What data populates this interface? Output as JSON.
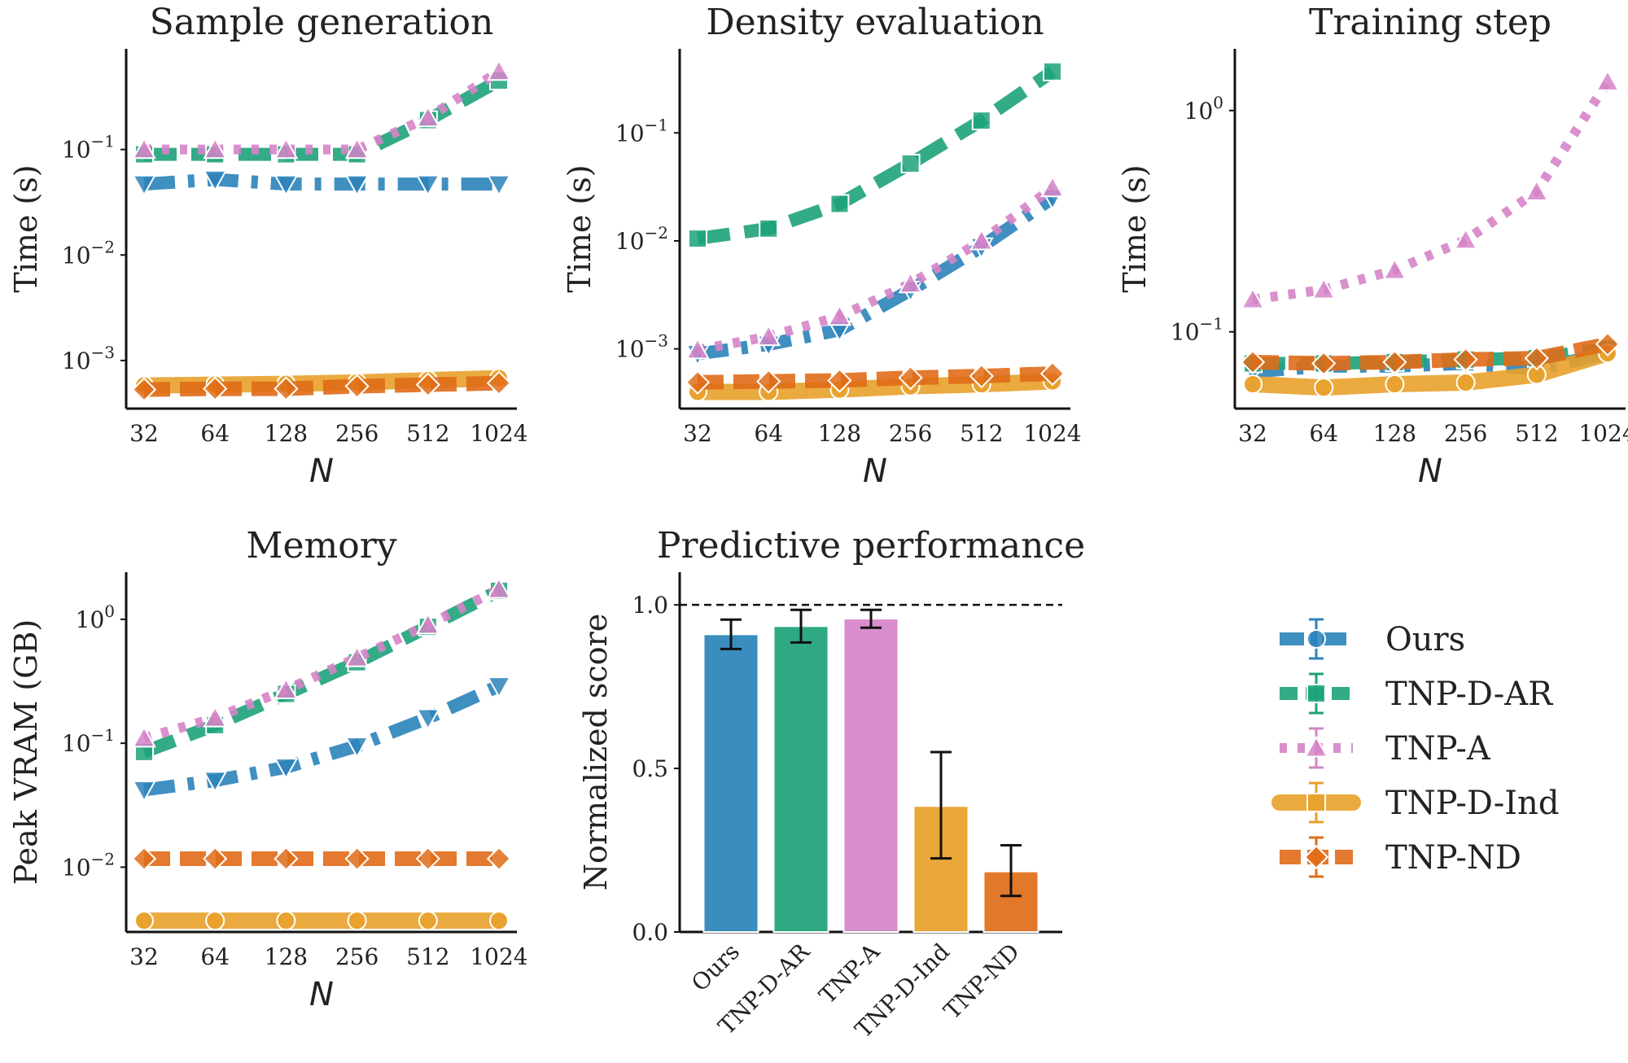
{
  "series_styles": [
    {
      "key": "ours",
      "name": "Ours",
      "color": "#2b83ba",
      "marker": "triangle-down",
      "legend_marker": "circle",
      "dash": "38,16,8,16",
      "width": 16
    },
    {
      "key": "tnp_d_ar",
      "name": "TNP-D-AR",
      "color": "#1da27a",
      "marker": "square",
      "legend_marker": "square",
      "dash": "40,18",
      "width": 16
    },
    {
      "key": "tnp_a",
      "name": "TNP-A",
      "color": "#d584c8",
      "marker": "triangle-up",
      "legend_marker": "triangle-up",
      "dash": "9,13",
      "width": 12
    },
    {
      "key": "tnp_d_ind",
      "name": "TNP-D-Ind",
      "color": "#e8a12a",
      "marker": "circle",
      "legend_marker": "square",
      "dash": "",
      "width": 20
    },
    {
      "key": "tnp_nd",
      "name": "TNP-ND",
      "color": "#e06c18",
      "marker": "diamond",
      "legend_marker": "diamond",
      "dash": "32,12",
      "width": 18
    }
  ],
  "chart_data": [
    {
      "id": "sample-generation",
      "type": "line",
      "title": "Sample generation",
      "xlabel": "N",
      "ylabel": "Time (s)",
      "yscale": "log",
      "ylim": [
        0.00035,
        0.9
      ],
      "x": [
        32,
        64,
        128,
        256,
        512,
        1024
      ],
      "yticks": [
        0.001,
        0.01,
        0.1
      ],
      "ytick_labels": [
        [
          "10",
          "−3"
        ],
        [
          "10",
          "−2"
        ],
        [
          "10",
          "−1"
        ]
      ],
      "series": [
        {
          "key": "ours",
          "values": [
            0.047,
            0.052,
            0.047,
            0.047,
            0.047,
            0.047
          ]
        },
        {
          "key": "tnp_d_ar",
          "values": [
            0.09,
            0.09,
            0.09,
            0.09,
            0.19,
            0.45
          ]
        },
        {
          "key": "tnp_a",
          "values": [
            0.1,
            0.1,
            0.1,
            0.1,
            0.2,
            0.55
          ]
        },
        {
          "key": "tnp_d_ind",
          "values": [
            0.00058,
            0.00059,
            0.0006,
            0.00062,
            0.00065,
            0.00068
          ]
        },
        {
          "key": "tnp_nd",
          "values": [
            0.00053,
            0.00054,
            0.00054,
            0.00057,
            0.00059,
            0.00061
          ]
        }
      ]
    },
    {
      "id": "density-evaluation",
      "type": "line",
      "title": "Density evaluation",
      "xlabel": "N",
      "ylabel": "Time (s)",
      "yscale": "log",
      "ylim": [
        0.00028,
        0.6
      ],
      "x": [
        32,
        64,
        128,
        256,
        512,
        1024
      ],
      "yticks": [
        0.001,
        0.01,
        0.1
      ],
      "ytick_labels": [
        [
          "10",
          "−3"
        ],
        [
          "10",
          "−2"
        ],
        [
          "10",
          "−1"
        ]
      ],
      "series": [
        {
          "key": "ours",
          "values": [
            0.0009,
            0.0011,
            0.0015,
            0.0035,
            0.0088,
            0.025
          ]
        },
        {
          "key": "tnp_d_ar",
          "values": [
            0.0105,
            0.013,
            0.022,
            0.052,
            0.13,
            0.37
          ]
        },
        {
          "key": "tnp_a",
          "values": [
            0.00098,
            0.0013,
            0.002,
            0.004,
            0.01,
            0.031
          ]
        },
        {
          "key": "tnp_d_ind",
          "values": [
            0.0004,
            0.0004,
            0.00042,
            0.00045,
            0.00047,
            0.0005
          ]
        },
        {
          "key": "tnp_nd",
          "values": [
            0.00049,
            0.0005,
            0.00051,
            0.00054,
            0.00056,
            0.00059
          ]
        }
      ]
    },
    {
      "id": "training-step",
      "type": "line",
      "title": "Training step",
      "xlabel": "N",
      "ylabel": "Time (s)",
      "yscale": "log",
      "ylim": [
        0.045,
        1.9
      ],
      "x": [
        32,
        64,
        128,
        256,
        512,
        1024
      ],
      "yticks": [
        0.1,
        1
      ],
      "ytick_labels": [
        [
          "10",
          "−1"
        ],
        [
          "10",
          "0"
        ]
      ],
      "series": [
        {
          "key": "ours",
          "values": [
            0.066,
            0.07,
            0.07,
            0.072,
            0.068,
            0.08
          ]
        },
        {
          "key": "tnp_d_ar",
          "values": [
            0.072,
            0.072,
            0.073,
            0.075,
            0.076,
            0.084
          ]
        },
        {
          "key": "tnp_a",
          "values": [
            0.14,
            0.155,
            0.19,
            0.26,
            0.43,
            1.35
          ]
        },
        {
          "key": "tnp_d_ind",
          "values": [
            0.058,
            0.056,
            0.058,
            0.059,
            0.064,
            0.08
          ]
        },
        {
          "key": "tnp_nd",
          "values": [
            0.073,
            0.072,
            0.073,
            0.075,
            0.076,
            0.088
          ]
        }
      ]
    },
    {
      "id": "memory",
      "type": "line",
      "title": "Memory",
      "xlabel": "N",
      "ylabel": "Peak VRAM (GB)",
      "yscale": "log",
      "ylim": [
        0.003,
        2.4
      ],
      "x": [
        32,
        64,
        128,
        256,
        512,
        1024
      ],
      "yticks": [
        0.01,
        0.1,
        1
      ],
      "ytick_labels": [
        [
          "10",
          "−2"
        ],
        [
          "10",
          "−1"
        ],
        [
          "10",
          "0"
        ]
      ],
      "series": [
        {
          "key": "ours",
          "values": [
            0.042,
            0.05,
            0.064,
            0.095,
            0.16,
            0.29
          ]
        },
        {
          "key": "tnp_d_ar",
          "values": [
            0.085,
            0.14,
            0.25,
            0.45,
            0.87,
            1.7
          ]
        },
        {
          "key": "tnp_a",
          "values": [
            0.11,
            0.16,
            0.27,
            0.49,
            0.9,
            1.75
          ]
        },
        {
          "key": "tnp_d_ind",
          "values": [
            0.0037,
            0.0037,
            0.0037,
            0.0037,
            0.0037,
            0.0037
          ]
        },
        {
          "key": "tnp_nd",
          "values": [
            0.0117,
            0.0117,
            0.0117,
            0.0117,
            0.0117,
            0.0117
          ]
        }
      ]
    },
    {
      "id": "predictive-performance",
      "type": "bar",
      "title": "Predictive performance",
      "ylabel": "Normalized score",
      "ylim": [
        0,
        1.1
      ],
      "yticks": [
        0.0,
        0.5,
        1.0
      ],
      "ytick_labels": [
        "0.0",
        "0.5",
        "1.0"
      ],
      "reference_line": 1.0,
      "categories": [
        "Ours",
        "TNP-D-AR",
        "TNP-A",
        "TNP-D-Ind",
        "TNP-ND"
      ],
      "keys": [
        "ours",
        "tnp_d_ar",
        "tnp_a",
        "tnp_d_ind",
        "tnp_nd"
      ],
      "values": [
        0.91,
        0.935,
        0.958,
        0.385,
        0.185
      ],
      "error_low": [
        0.865,
        0.885,
        0.93,
        0.225,
        0.11
      ],
      "error_high": [
        0.955,
        0.985,
        0.985,
        0.55,
        0.265
      ]
    }
  ]
}
